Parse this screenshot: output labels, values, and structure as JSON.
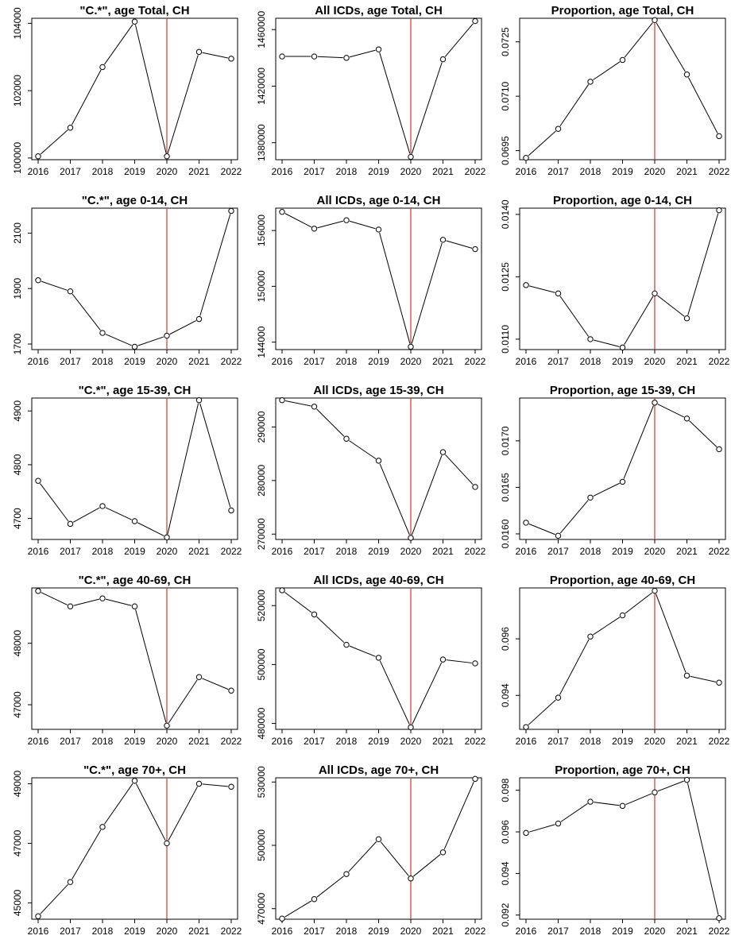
{
  "chart_data": [
    {
      "type": "line",
      "title": "\"C.*\", age Total, CH",
      "x": [
        2016,
        2017,
        2018,
        2019,
        2020,
        2021,
        2022
      ],
      "y": [
        100050,
        100900,
        102700,
        104050,
        100050,
        103150,
        102950
      ],
      "ylim": [
        99950,
        104150
      ],
      "yticks": [
        {
          "v": 100000,
          "label": "100000"
        },
        {
          "v": 102000,
          "label": "102000"
        },
        {
          "v": 104000,
          "label": "104000"
        }
      ],
      "vline": 2020,
      "vline_color": "#d03a2a"
    },
    {
      "type": "line",
      "title": "All ICDs, age Total, CH",
      "x": [
        2016,
        2017,
        2018,
        2019,
        2020,
        2021,
        2022
      ],
      "y": [
        1441000,
        1441000,
        1440000,
        1446000,
        1370000,
        1439000,
        1466000
      ],
      "ylim": [
        1368000,
        1468000
      ],
      "yticks": [
        {
          "v": 1380000,
          "label": "1380000"
        },
        {
          "v": 1420000,
          "label": "1420000"
        },
        {
          "v": 1460000,
          "label": "1460000"
        }
      ],
      "vline": 2020,
      "vline_color": "#d03a2a"
    },
    {
      "type": "line",
      "title": "Proportion, age Total, CH",
      "x": [
        2016,
        2017,
        2018,
        2019,
        2020,
        2021,
        2022
      ],
      "y": [
        0.0693,
        0.0701,
        0.0714,
        0.072,
        0.0731,
        0.0716,
        0.0699
      ],
      "ylim": [
        0.06925,
        0.07315
      ],
      "yticks": [
        {
          "v": 0.0695,
          "label": "0.0695"
        },
        {
          "v": 0.071,
          "label": "0.0710"
        },
        {
          "v": 0.0725,
          "label": "0.0725"
        }
      ],
      "vline": 2020,
      "vline_color": "#d03a2a"
    },
    {
      "type": "line",
      "title": "\"C.*\", age 0-14, CH",
      "x": [
        2016,
        2017,
        2018,
        2019,
        2020,
        2021,
        2022
      ],
      "y": [
        1930,
        1890,
        1740,
        1690,
        1730,
        1790,
        2180
      ],
      "ylim": [
        1680,
        2190
      ],
      "yticks": [
        {
          "v": 1700,
          "label": "1700"
        },
        {
          "v": 1900,
          "label": "1900"
        },
        {
          "v": 2100,
          "label": "2100"
        }
      ],
      "vline": 2020,
      "vline_color": "#d03a2a"
    },
    {
      "type": "line",
      "title": "All ICDs, age 0-14, CH",
      "x": [
        2016,
        2017,
        2018,
        2019,
        2020,
        2021,
        2022
      ],
      "y": [
        158000,
        156200,
        157100,
        156100,
        143500,
        155000,
        154000
      ],
      "ylim": [
        143200,
        158400
      ],
      "yticks": [
        {
          "v": 144000,
          "label": "144000"
        },
        {
          "v": 150000,
          "label": "150000"
        },
        {
          "v": 156000,
          "label": "156000"
        }
      ],
      "vline": 2020,
      "vline_color": "#d03a2a"
    },
    {
      "type": "line",
      "title": "Proportion, age 0-14, CH",
      "x": [
        2016,
        2017,
        2018,
        2019,
        2020,
        2021,
        2022
      ],
      "y": [
        0.0123,
        0.0121,
        0.011,
        0.0108,
        0.0121,
        0.0115,
        0.0141
      ],
      "ylim": [
        0.01075,
        0.01415
      ],
      "yticks": [
        {
          "v": 0.011,
          "label": "0.0110"
        },
        {
          "v": 0.0125,
          "label": "0.0125"
        },
        {
          "v": 0.014,
          "label": "0.0140"
        }
      ],
      "vline": 2020,
      "vline_color": "#d03a2a"
    },
    {
      "type": "line",
      "title": "\"C.*\", age 15-39, CH",
      "x": [
        2016,
        2017,
        2018,
        2019,
        2020,
        2021,
        2022
      ],
      "y": [
        4770,
        4690,
        4723,
        4695,
        4665,
        4920,
        4715
      ],
      "ylim": [
        4661,
        4924
      ],
      "yticks": [
        {
          "v": 4700,
          "label": "4700"
        },
        {
          "v": 4800,
          "label": "4800"
        },
        {
          "v": 4900,
          "label": "4900"
        }
      ],
      "vline": 2020,
      "vline_color": "#d03a2a"
    },
    {
      "type": "line",
      "title": "All ICDs, age 15-39, CH",
      "x": [
        2016,
        2017,
        2018,
        2019,
        2020,
        2021,
        2022
      ],
      "y": [
        295000,
        293800,
        287800,
        283700,
        269300,
        285300,
        278800
      ],
      "ylim": [
        269000,
        295400
      ],
      "yticks": [
        {
          "v": 270000,
          "label": "270000"
        },
        {
          "v": 280000,
          "label": "280000"
        },
        {
          "v": 290000,
          "label": "290000"
        }
      ],
      "vline": 2020,
      "vline_color": "#d03a2a"
    },
    {
      "type": "line",
      "title": "Proportion, age 15-39, CH",
      "x": [
        2016,
        2017,
        2018,
        2019,
        2020,
        2021,
        2022
      ],
      "y": [
        0.01612,
        0.01598,
        0.01639,
        0.01656,
        0.01741,
        0.01724,
        0.01691
      ],
      "ylim": [
        0.01594,
        0.01746
      ],
      "yticks": [
        {
          "v": 0.016,
          "label": "0.0160"
        },
        {
          "v": 0.0165,
          "label": "0.0165"
        },
        {
          "v": 0.017,
          "label": "0.0170"
        }
      ],
      "vline": 2020,
      "vline_color": "#d03a2a"
    },
    {
      "type": "line",
      "title": "\"C.*\", age 40-69, CH",
      "x": [
        2016,
        2017,
        2018,
        2019,
        2020,
        2021,
        2022
      ],
      "y": [
        48850,
        48600,
        48730,
        48600,
        46660,
        47450,
        47230
      ],
      "ylim": [
        46600,
        48900
      ],
      "yticks": [
        {
          "v": 47000,
          "label": "47000"
        },
        {
          "v": 48000,
          "label": "48000"
        }
      ],
      "vline": 2020,
      "vline_color": "#d03a2a"
    },
    {
      "type": "line",
      "title": "All ICDs, age 40-69, CH",
      "x": [
        2016,
        2017,
        2018,
        2019,
        2020,
        2021,
        2022
      ],
      "y": [
        525200,
        517000,
        506700,
        502300,
        478700,
        501700,
        500400
      ],
      "ylim": [
        478000,
        526000
      ],
      "yticks": [
        {
          "v": 480000,
          "label": "480000"
        },
        {
          "v": 500000,
          "label": "500000"
        },
        {
          "v": 520000,
          "label": "520000"
        }
      ],
      "vline": 2020,
      "vline_color": "#d03a2a"
    },
    {
      "type": "line",
      "title": "Proportion, age 40-69, CH",
      "x": [
        2016,
        2017,
        2018,
        2019,
        2020,
        2021,
        2022
      ],
      "y": [
        0.09288,
        0.09392,
        0.09608,
        0.09683,
        0.0977,
        0.0947,
        0.09445
      ],
      "ylim": [
        0.0928,
        0.0978
      ],
      "yticks": [
        {
          "v": 0.094,
          "label": "0.094"
        },
        {
          "v": 0.096,
          "label": "0.096"
        }
      ],
      "vline": 2020,
      "vline_color": "#d03a2a"
    },
    {
      "type": "line",
      "title": "\"C.*\", age 70+, CH",
      "x": [
        2016,
        2017,
        2018,
        2019,
        2020,
        2021,
        2022
      ],
      "y": [
        44550,
        45700,
        47550,
        49100,
        47000,
        49000,
        48900
      ],
      "ylim": [
        44450,
        49200
      ],
      "yticks": [
        {
          "v": 45000,
          "label": "45000"
        },
        {
          "v": 47000,
          "label": "47000"
        },
        {
          "v": 49000,
          "label": "49000"
        }
      ],
      "vline": 2020,
      "vline_color": "#d03a2a"
    },
    {
      "type": "line",
      "title": "All ICDs, age 70+, CH",
      "x": [
        2016,
        2017,
        2018,
        2019,
        2020,
        2021,
        2022
      ],
      "y": [
        465300,
        474500,
        486400,
        502900,
        484300,
        496700,
        531500
      ],
      "ylim": [
        465000,
        532000
      ],
      "yticks": [
        {
          "v": 470000,
          "label": "470000"
        },
        {
          "v": 500000,
          "label": "500000"
        },
        {
          "v": 530000,
          "label": "530000"
        }
      ],
      "vline": 2020,
      "vline_color": "#d03a2a"
    },
    {
      "type": "line",
      "title": "Proportion, age 70+, CH",
      "x": [
        2016,
        2017,
        2018,
        2019,
        2020,
        2021,
        2022
      ],
      "y": [
        0.09595,
        0.0964,
        0.09745,
        0.09725,
        0.0979,
        0.0985,
        0.09185
      ],
      "ylim": [
        0.0918,
        0.0986
      ],
      "yticks": [
        {
          "v": 0.092,
          "label": "0.092"
        },
        {
          "v": 0.094,
          "label": "0.094"
        },
        {
          "v": 0.096,
          "label": "0.096"
        },
        {
          "v": 0.098,
          "label": "0.098"
        }
      ],
      "vline": 2020,
      "vline_color": "#d03a2a"
    }
  ]
}
